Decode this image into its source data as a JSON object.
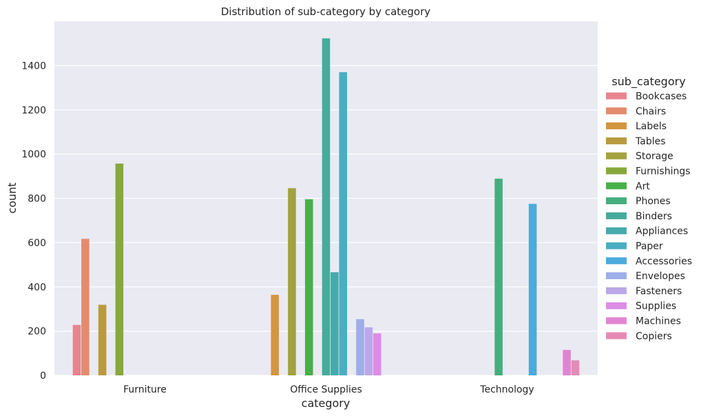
{
  "chart_data": {
    "type": "bar",
    "title": "Distribution of sub-category by category",
    "xlabel": "category",
    "ylabel": "count",
    "ylim": [
      0,
      1600
    ],
    "yticks": [
      0,
      200,
      400,
      600,
      800,
      1000,
      1200,
      1400
    ],
    "grid": true,
    "legend_placement": "right",
    "legend_title": "sub_category",
    "categories": [
      "Furniture",
      "Office Supplies",
      "Technology"
    ],
    "series": [
      {
        "name": "Bookcases",
        "color": "#e8848f",
        "values": [
          228,
          0,
          0
        ]
      },
      {
        "name": "Chairs",
        "color": "#e48b6f",
        "values": [
          617,
          0,
          0
        ]
      },
      {
        "name": "Labels",
        "color": "#d39640",
        "values": [
          0,
          364,
          0
        ]
      },
      {
        "name": "Tables",
        "color": "#b99a3f",
        "values": [
          319,
          0,
          0
        ]
      },
      {
        "name": "Storage",
        "color": "#a4a23e",
        "values": [
          0,
          846,
          0
        ]
      },
      {
        "name": "Furnishings",
        "color": "#87a83c",
        "values": [
          957,
          0,
          0
        ]
      },
      {
        "name": "Art",
        "color": "#47b04a",
        "values": [
          0,
          796,
          0
        ]
      },
      {
        "name": "Phones",
        "color": "#46ae7e",
        "values": [
          0,
          0,
          889
        ]
      },
      {
        "name": "Binders",
        "color": "#47ab9b",
        "values": [
          0,
          1523,
          0
        ]
      },
      {
        "name": "Appliances",
        "color": "#46aaab",
        "values": [
          0,
          466,
          0
        ]
      },
      {
        "name": "Paper",
        "color": "#4cadc2",
        "values": [
          0,
          1370,
          0
        ]
      },
      {
        "name": "Accessories",
        "color": "#4caadc",
        "values": [
          0,
          0,
          775
        ]
      },
      {
        "name": "Envelopes",
        "color": "#9daee8",
        "values": [
          0,
          254,
          0
        ]
      },
      {
        "name": "Fasteners",
        "color": "#bba7ea",
        "values": [
          0,
          217,
          0
        ]
      },
      {
        "name": "Supplies",
        "color": "#dc8ce6",
        "values": [
          0,
          190,
          0
        ]
      },
      {
        "name": "Machines",
        "color": "#e285d1",
        "values": [
          0,
          0,
          115
        ]
      },
      {
        "name": "Copiers",
        "color": "#e68bb5",
        "values": [
          0,
          0,
          68
        ]
      }
    ]
  }
}
